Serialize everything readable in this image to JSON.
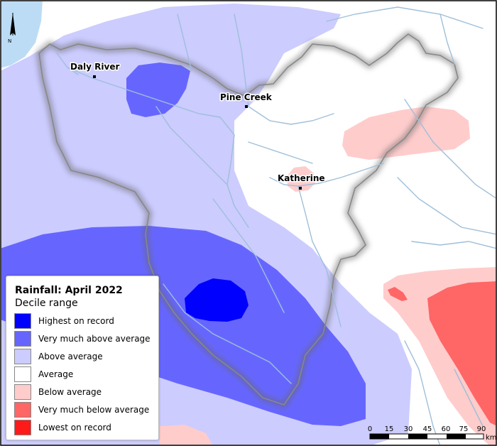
{
  "map": {
    "north_label": "N",
    "places": [
      {
        "name": "Daly River"
      },
      {
        "name": "Pine Creek"
      },
      {
        "name": "Katherine"
      }
    ],
    "colors": {
      "highest": "#0000ff",
      "very_much_above": "#6666ff",
      "above": "#ccccff",
      "average": "#ffffff",
      "below": "#ffcccc",
      "very_much_below": "#ff6666",
      "lowest": "#ff1a1a",
      "water": "#bcdcf5",
      "river": "#9ebfd9"
    }
  },
  "legend": {
    "title": "Rainfall: April 2022",
    "subtitle": "Decile range",
    "items": [
      {
        "label": "Highest on record",
        "color": "#0000ff"
      },
      {
        "label": "Very much above average",
        "color": "#6666ff"
      },
      {
        "label": "Above average",
        "color": "#ccccff"
      },
      {
        "label": "Average",
        "color": "#ffffff"
      },
      {
        "label": "Below average",
        "color": "#ffcccc"
      },
      {
        "label": "Very much below average",
        "color": "#ff6666"
      },
      {
        "label": "Lowest on record",
        "color": "#ff1a1a"
      }
    ]
  },
  "scale_bar": {
    "ticks": [
      "0",
      "15",
      "30",
      "45",
      "60",
      "75",
      "90"
    ],
    "unit": "km"
  }
}
